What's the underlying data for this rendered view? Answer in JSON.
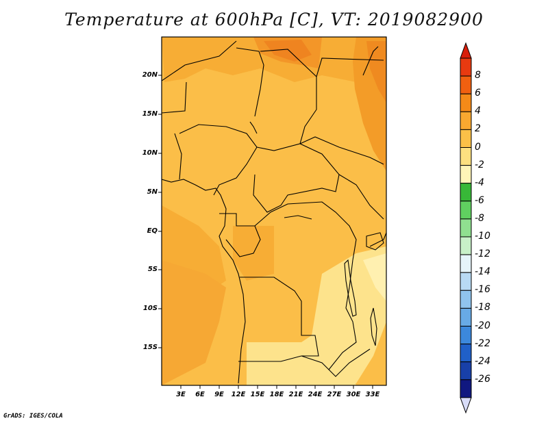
{
  "title": "Temperature at 600hPa [C], VT: 2019082900",
  "credit": "GrADS: IGES/COLA",
  "map": {
    "lat_ticks": [
      "20N",
      "15N",
      "10N",
      "5N",
      "EQ",
      "5S",
      "10S",
      "15S"
    ],
    "lon_ticks": [
      "3E",
      "6E",
      "9E",
      "12E",
      "15E",
      "18E",
      "21E",
      "24E",
      "27E",
      "30E",
      "33E"
    ]
  },
  "colorbar": {
    "labels": [
      "8",
      "6",
      "4",
      "2",
      "0",
      "-2",
      "-4",
      "-6",
      "-8",
      "-10",
      "-12",
      "-14",
      "-16",
      "-18",
      "-20",
      "-22",
      "-24",
      "-26"
    ],
    "colors": [
      "#e83a10",
      "#f06010",
      "#f48a18",
      "#f9a830",
      "#fbc048",
      "#fde080",
      "#fff5b8",
      "#38b838",
      "#60d060",
      "#90e090",
      "#c8f0c8",
      "#e6f4fa",
      "#b8daf4",
      "#90c4ee",
      "#68aae6",
      "#3c88dc",
      "#2060c8",
      "#1840a8",
      "#101880"
    ],
    "top_arrow_color": "#d81e0a",
    "bottom_arrow_color": "#d8dcf8"
  },
  "colors": {
    "base": "#fbbe48",
    "warm": "#f7ad35",
    "warmer": "#f39c28",
    "hot": "#ef8a20",
    "cool": "#fde38c",
    "coolest": "#fff0b0",
    "border": "#000000"
  }
}
